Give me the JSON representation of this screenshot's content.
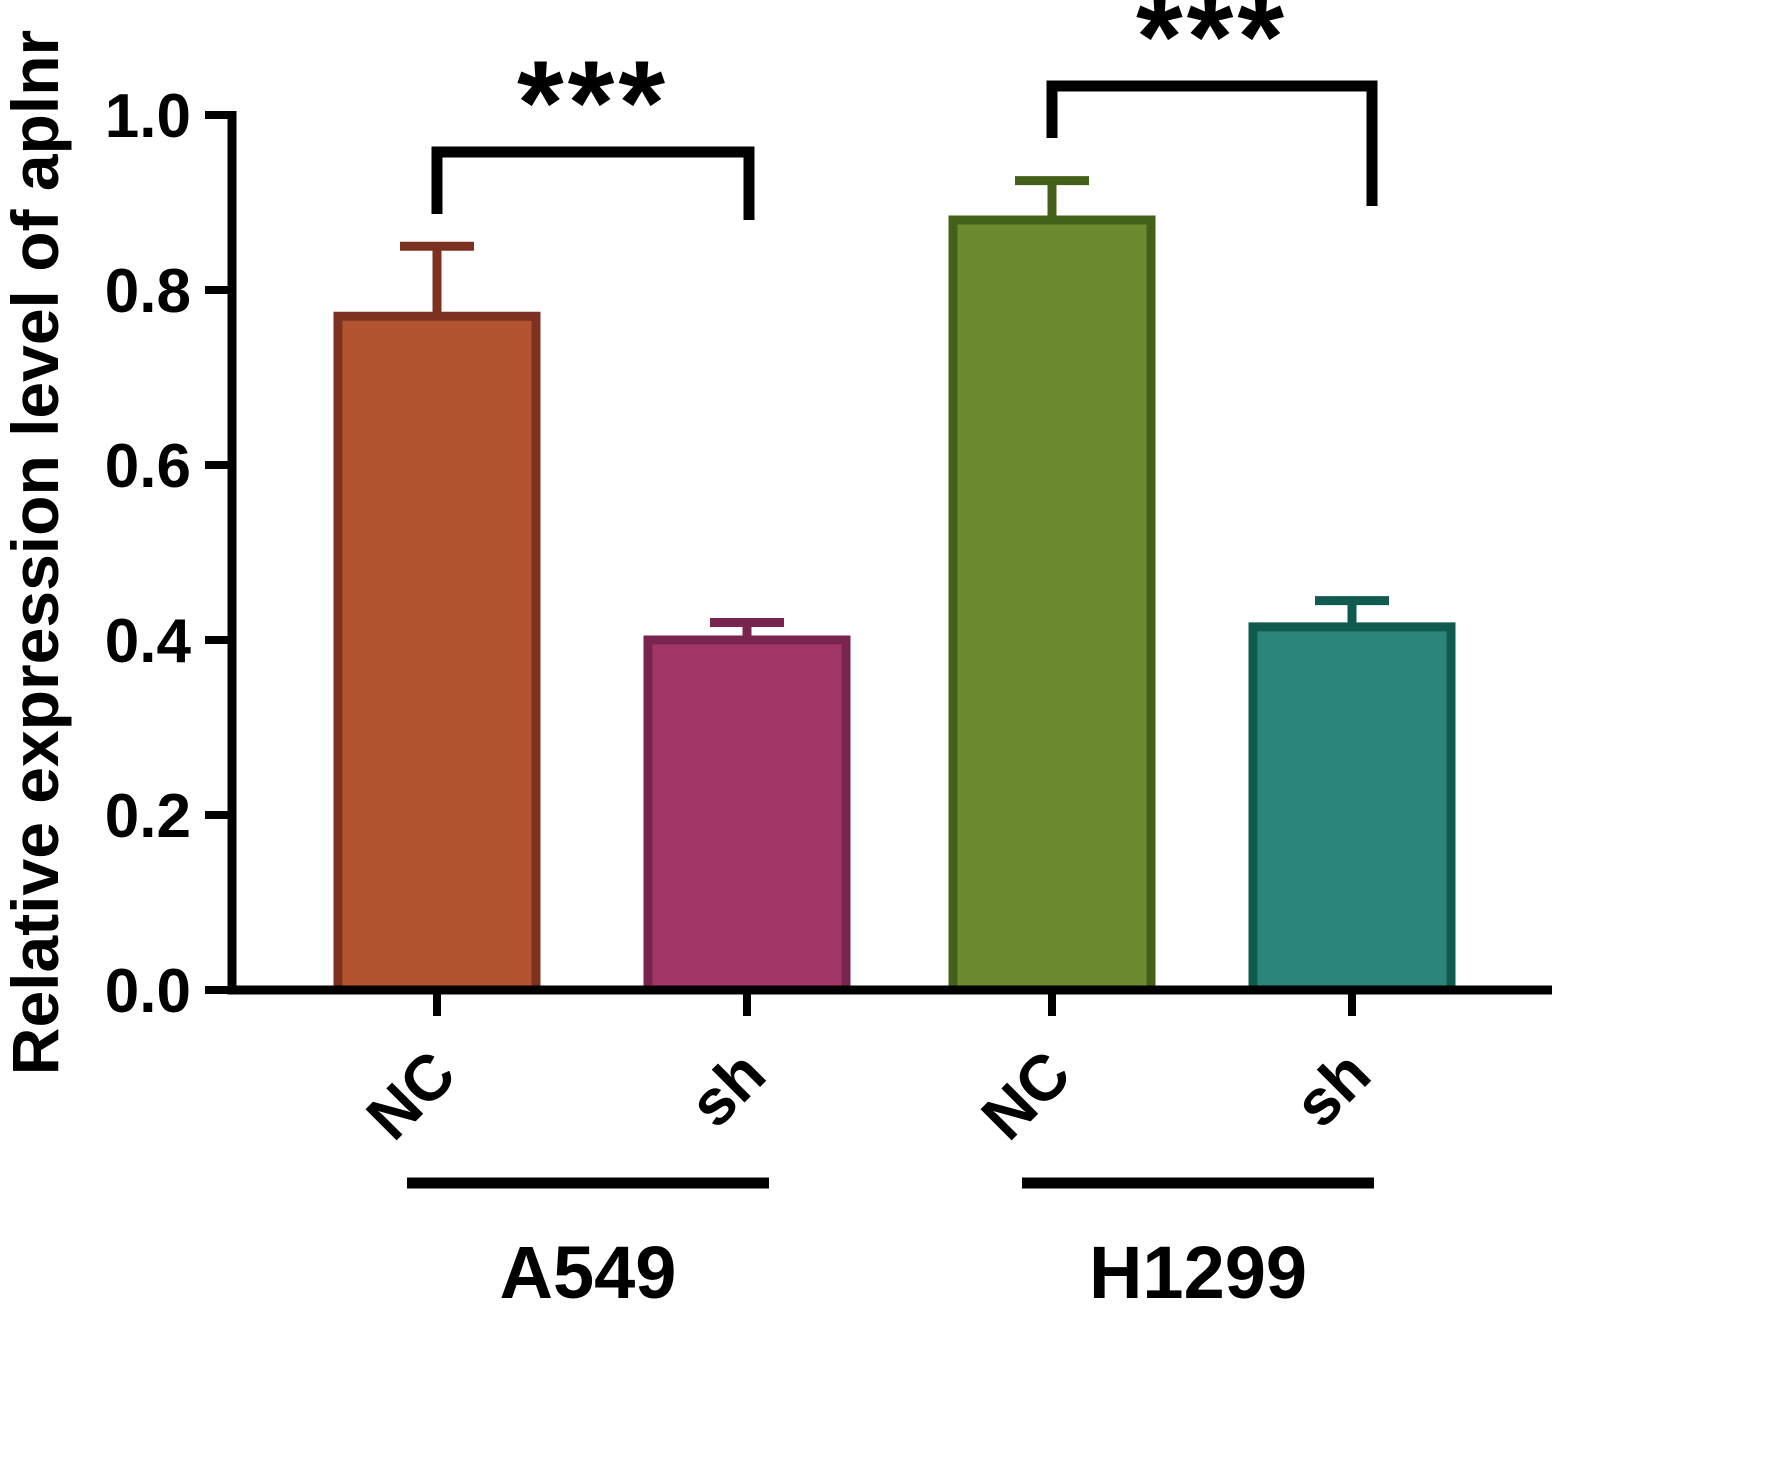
{
  "figure": {
    "background": "#ffffff",
    "axis_color": "#000000"
  },
  "chart_data": {
    "type": "bar",
    "title": "",
    "xlabel": "",
    "ylabel": "Relative expression level of aplnr",
    "ylim": [
      0.0,
      1.0
    ],
    "yticks": [
      0.0,
      0.2,
      0.4,
      0.6,
      0.8,
      1.0
    ],
    "grid": false,
    "legend": "none",
    "groups": [
      {
        "label": "A549",
        "significance": "***",
        "bars": [
          {
            "label": "NC",
            "value": 0.77,
            "error_plus": 0.08,
            "fill": "#B25430",
            "stroke": "#7D3121"
          },
          {
            "label": "sh",
            "value": 0.4,
            "error_plus": 0.02,
            "fill": "#A23767",
            "stroke": "#79244E"
          }
        ]
      },
      {
        "label": "H1299",
        "significance": "***",
        "bars": [
          {
            "label": "NC",
            "value": 0.88,
            "error_plus": 0.045,
            "fill": "#6C8A2F",
            "stroke": "#44611A"
          },
          {
            "label": "sh",
            "value": 0.415,
            "error_plus": 0.03,
            "fill": "#2A8578",
            "stroke": "#115A50"
          }
        ]
      }
    ]
  }
}
